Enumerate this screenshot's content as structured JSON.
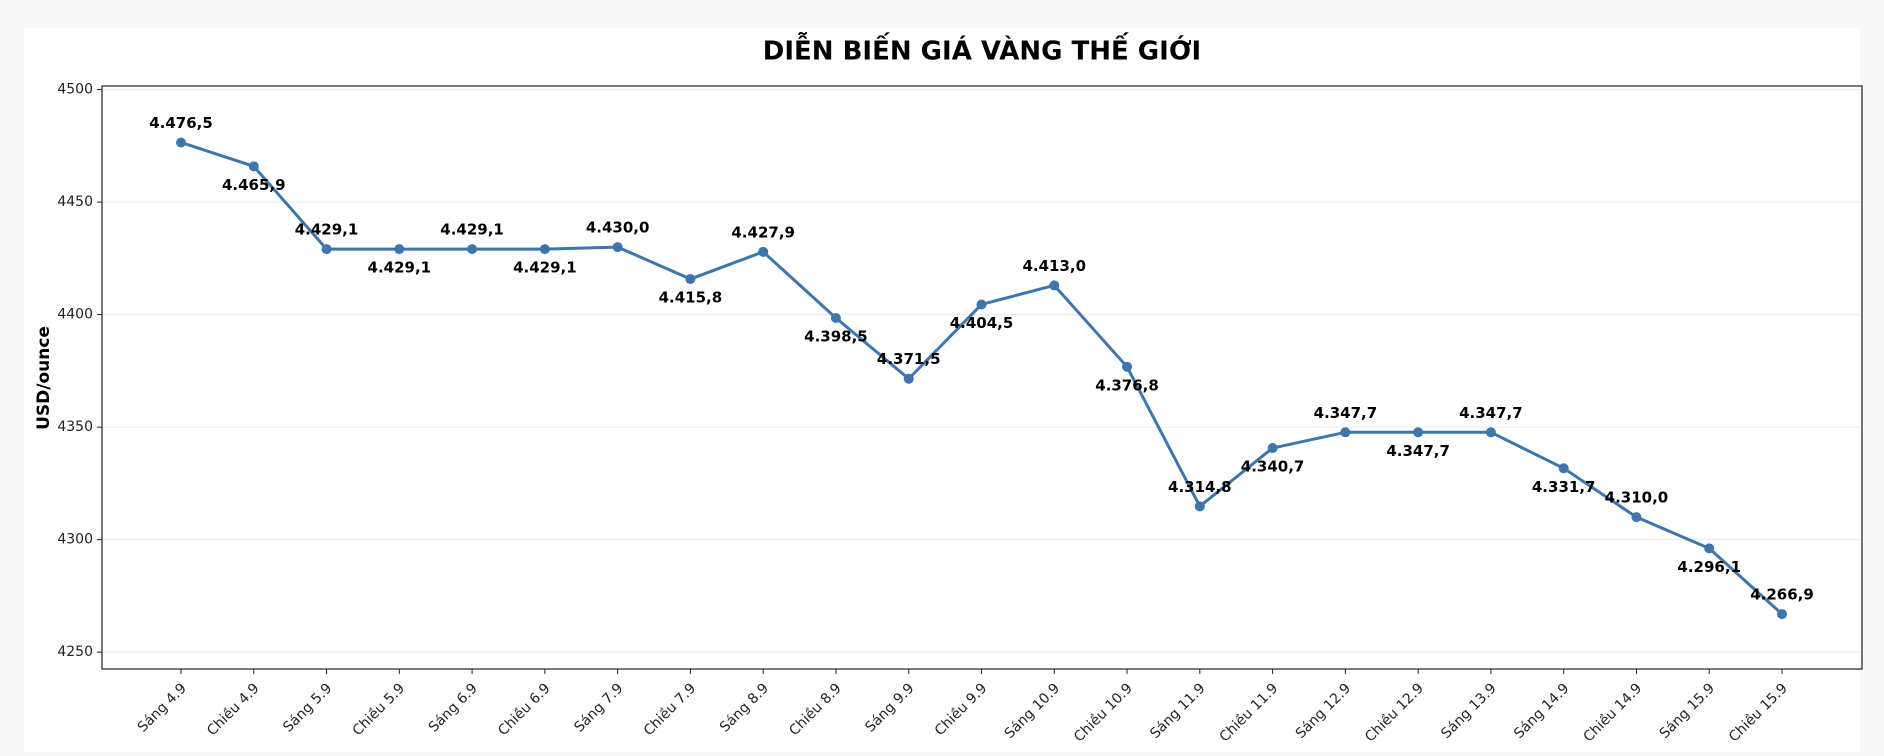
{
  "chart_data": {
    "type": "line",
    "title": "DIỄN BIẾN GIÁ VÀNG THẾ GIỚI",
    "y_label": "USD/ounce",
    "categories": [
      "Sáng 4.9",
      "Chiều 4.9",
      "Sáng 5.9",
      "Chiều 5.9",
      "Sáng 6.9",
      "Chiều 6.9",
      "Sáng 7.9",
      "Chiều 7.9",
      "Sáng 8.9",
      "Chiều 8.9",
      "Sáng 9.9",
      "Chiều 9.9",
      "Sáng 10.9",
      "Chiều 10.9",
      "Sáng 11.9",
      "Chiều 11.9",
      "Sáng 12.9",
      "Chiều 12.9",
      "Sáng 13.9",
      "Sáng 14.9",
      "Chiều 14.9",
      "Sáng 15.9",
      "Chiều 15.9"
    ],
    "values": [
      4476.5,
      4465.9,
      4429.1,
      4429.1,
      4429.1,
      4429.1,
      4430.0,
      4415.8,
      4427.9,
      4398.5,
      4371.5,
      4404.5,
      4413.0,
      4376.8,
      4314.8,
      4340.7,
      4347.7,
      4347.7,
      4347.7,
      4331.7,
      4310.0,
      4296.1,
      4266.9
    ],
    "value_labels": [
      "4.476,5",
      "4.465,9",
      "4.429,1",
      "4.429,1",
      "4.429,1",
      "4.429,1",
      "4.430,0",
      "4.415,8",
      "4.427,9",
      "4.398,5",
      "4.371,5",
      "4.404,5",
      "4.413,0",
      "4.376,8",
      "4.314,8",
      "4.340,7",
      "4.347,7",
      "4.347,7",
      "4.347,7",
      "4.331,7",
      "4.310,0",
      "4.296,1",
      "4.266,9"
    ],
    "color": "#3d76ab",
    "ylim": [
      4242.5,
      4501.6
    ],
    "yticks": [
      4250,
      4300,
      4350,
      4400,
      4450,
      4500
    ],
    "grid": true
  }
}
